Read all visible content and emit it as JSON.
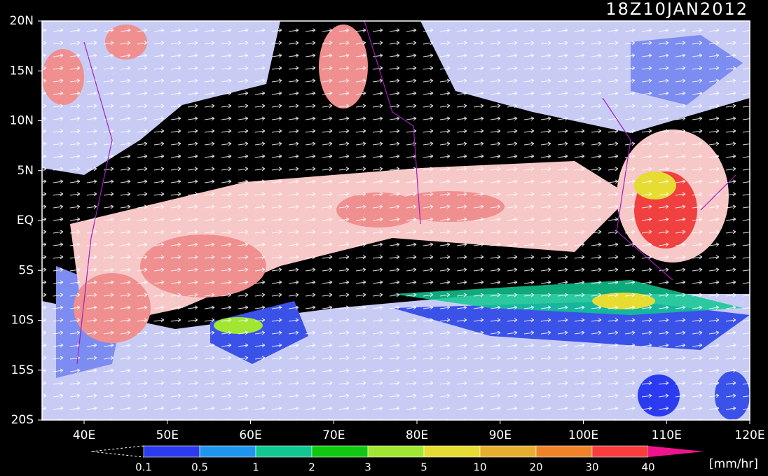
{
  "map": {
    "title": "18Z10JAN2012",
    "lat_labels": [
      "20N",
      "15N",
      "10N",
      "5N",
      "EQ",
      "5S",
      "10S",
      "15S",
      "20S"
    ],
    "lon_labels": [
      "40E",
      "50E",
      "60E",
      "70E",
      "80E",
      "90E",
      "100E",
      "110E",
      "120E"
    ]
  },
  "colorbar": {
    "levels": [
      "0.1",
      "0.5",
      "1",
      "2",
      "3",
      "5",
      "10",
      "20",
      "30",
      "40"
    ],
    "colors": [
      "#2b3bf0",
      "#1e96f0",
      "#10c890",
      "#10c810",
      "#a0e632",
      "#e6dc32",
      "#e6af2d",
      "#f08228",
      "#fa3c3c",
      "#f0148c"
    ],
    "unit": "[mm/hr]"
  }
}
